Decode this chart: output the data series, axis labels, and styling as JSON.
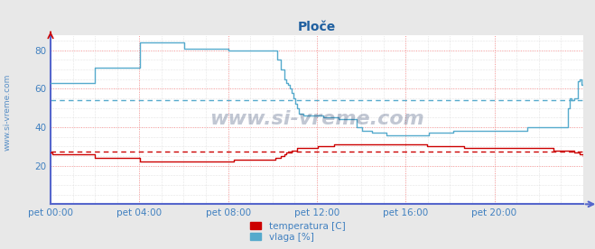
{
  "title": "Ploče",
  "title_color": "#2060a0",
  "bg_color": "#e8e8e8",
  "plot_bg_color": "#ffffff",
  "grid_color_major": "#ff9999",
  "grid_color_minor": "#cccccc",
  "tick_color": "#4080c0",
  "watermark": "www.si-vreme.com",
  "watermark_color": "#0a2050",
  "left_label": "www.si-vreme.com",
  "xticklabels": [
    "pet 00:00",
    "pet 04:00",
    "pet 08:00",
    "pet 12:00",
    "pet 16:00",
    "pet 20:00"
  ],
  "yticks": [
    20,
    40,
    60,
    80
  ],
  "ylim": [
    0,
    88
  ],
  "xlim_data": 287,
  "temp_color": "#cc0000",
  "vlaga_color": "#55aacc",
  "axis_color": "#5566cc",
  "dashed_temp_avg": 27.5,
  "dashed_vlaga_avg": 54,
  "legend_temp": "temperatura [C]",
  "legend_vlaga": "vlaga [%]",
  "temp_data": [
    27,
    26,
    26,
    26,
    26,
    26,
    26,
    26,
    26,
    26,
    26,
    26,
    26,
    26,
    26,
    26,
    26,
    26,
    26,
    26,
    26,
    26,
    26,
    26,
    24,
    24,
    24,
    24,
    24,
    24,
    24,
    24,
    24,
    24,
    24,
    24,
    24,
    24,
    24,
    24,
    24,
    24,
    24,
    24,
    24,
    24,
    24,
    24,
    22,
    22,
    22,
    22,
    22,
    22,
    22,
    22,
    22,
    22,
    22,
    22,
    22,
    22,
    22,
    22,
    22,
    22,
    22,
    22,
    22,
    22,
    22,
    22,
    22,
    22,
    22,
    22,
    22,
    22,
    22,
    22,
    22,
    22,
    22,
    22,
    22,
    22,
    22,
    22,
    22,
    22,
    22,
    22,
    22,
    22,
    22,
    22,
    22,
    22,
    22,
    23,
    23,
    23,
    23,
    23,
    23,
    23,
    23,
    23,
    23,
    23,
    23,
    23,
    23,
    23,
    23,
    23,
    23,
    23,
    23,
    23,
    23,
    24,
    24,
    24,
    25,
    25,
    26,
    27,
    27,
    27,
    28,
    28,
    28,
    29,
    29,
    29,
    29,
    29,
    29,
    29,
    29,
    29,
    29,
    29,
    30,
    30,
    30,
    30,
    30,
    30,
    30,
    30,
    30,
    31,
    31,
    31,
    31,
    31,
    31,
    31,
    31,
    31,
    31,
    31,
    31,
    31,
    31,
    31,
    31,
    31,
    31,
    31,
    31,
    31,
    31,
    31,
    31,
    31,
    31,
    31,
    31,
    31,
    31,
    31,
    31,
    31,
    31,
    31,
    31,
    31,
    31,
    31,
    31,
    31,
    31,
    31,
    31,
    31,
    31,
    31,
    31,
    31,
    31,
    30,
    30,
    30,
    30,
    30,
    30,
    30,
    30,
    30,
    30,
    30,
    30,
    30,
    30,
    30,
    30,
    30,
    30,
    30,
    30,
    29,
    29,
    29,
    29,
    29,
    29,
    29,
    29,
    29,
    29,
    29,
    29,
    29,
    29,
    29,
    29,
    29,
    29,
    29,
    29,
    29,
    29,
    29,
    29,
    29,
    29,
    29,
    29,
    29,
    29,
    29,
    29,
    29,
    29,
    29,
    29,
    29,
    29,
    29,
    29,
    29,
    29,
    29,
    29,
    29,
    29,
    29,
    29,
    28,
    28,
    28,
    28,
    28,
    28,
    28,
    28,
    28,
    28,
    28,
    27,
    27,
    27,
    26,
    26,
    25
  ],
  "vlaga_data": [
    63,
    63,
    63,
    63,
    63,
    63,
    63,
    63,
    63,
    63,
    63,
    63,
    63,
    63,
    63,
    63,
    63,
    63,
    63,
    63,
    63,
    63,
    63,
    63,
    71,
    71,
    71,
    71,
    71,
    71,
    71,
    71,
    71,
    71,
    71,
    71,
    71,
    71,
    71,
    71,
    71,
    71,
    71,
    71,
    71,
    71,
    71,
    71,
    84,
    84,
    84,
    84,
    84,
    84,
    84,
    84,
    84,
    84,
    84,
    84,
    84,
    84,
    84,
    84,
    84,
    84,
    84,
    84,
    84,
    84,
    84,
    84,
    81,
    81,
    81,
    81,
    81,
    81,
    81,
    81,
    81,
    81,
    81,
    81,
    81,
    81,
    81,
    81,
    81,
    81,
    81,
    81,
    81,
    81,
    81,
    81,
    80,
    80,
    80,
    80,
    80,
    80,
    80,
    80,
    80,
    80,
    80,
    80,
    80,
    80,
    80,
    80,
    80,
    80,
    80,
    80,
    80,
    80,
    80,
    80,
    80,
    80,
    75,
    75,
    70,
    70,
    65,
    63,
    62,
    60,
    58,
    55,
    52,
    50,
    47,
    47,
    46,
    46,
    46,
    46,
    46,
    46,
    46,
    46,
    46,
    46,
    46,
    45,
    45,
    45,
    45,
    45,
    45,
    45,
    45,
    44,
    44,
    44,
    44,
    44,
    44,
    44,
    44,
    44,
    44,
    40,
    40,
    40,
    38,
    38,
    38,
    38,
    38,
    37,
    37,
    37,
    37,
    37,
    37,
    37,
    37,
    36,
    36,
    36,
    36,
    36,
    36,
    36,
    36,
    36,
    36,
    36,
    36,
    36,
    36,
    36,
    36,
    36,
    36,
    36,
    36,
    36,
    36,
    36,
    37,
    37,
    37,
    37,
    37,
    37,
    37,
    37,
    37,
    37,
    37,
    37,
    37,
    38,
    38,
    38,
    38,
    38,
    38,
    38,
    38,
    38,
    38,
    38,
    38,
    38,
    38,
    38,
    38,
    38,
    38,
    38,
    38,
    38,
    38,
    38,
    38,
    38,
    38,
    38,
    38,
    38,
    38,
    38,
    38,
    38,
    38,
    38,
    38,
    38,
    38,
    38,
    38,
    40,
    40,
    40,
    40,
    40,
    40,
    40,
    40,
    40,
    40,
    40,
    40,
    40,
    40,
    40,
    40,
    40,
    40,
    40,
    40,
    40,
    40,
    50,
    55,
    54,
    55,
    55,
    64,
    65,
    62,
    65
  ]
}
